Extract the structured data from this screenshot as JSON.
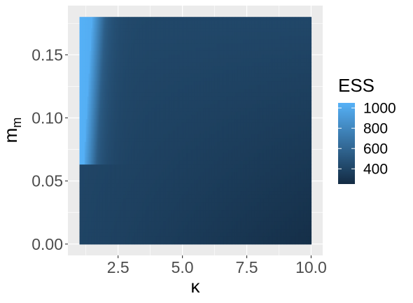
{
  "chart_data": {
    "type": "heatmap",
    "title": "",
    "xlabel": "κ",
    "ylabel_main": "m",
    "ylabel_sub": "m",
    "x_range": [
      1.0,
      10.0
    ],
    "y_range": [
      0.0,
      0.18
    ],
    "xlim": [
      0.55,
      10.45
    ],
    "ylim": [
      -0.009,
      0.189
    ],
    "x_ticks": [
      2.5,
      5.0,
      7.5,
      10.0
    ],
    "x_tick_labels": [
      "2.5",
      "5.0",
      "7.5",
      "10.0"
    ],
    "y_ticks": [
      0.0,
      0.05,
      0.1,
      0.15
    ],
    "y_tick_labels": [
      "0.00",
      "0.05",
      "0.10",
      "0.15"
    ],
    "grid": true,
    "fill_variable": "ESS",
    "color_scale": {
      "low_value": 250,
      "high_value": 1050,
      "low_color": "#132B43",
      "high_color": "#56B1F7"
    },
    "surface_estimate": {
      "description": "ESS high (~1050) in a thin wedge near κ=1 widening with m_m; decays to ~450 over most of the domain and ~260 at large κ, small m_m",
      "points": [
        {
          "kappa": 1.0,
          "m_m": 0.18,
          "ESS": 1050
        },
        {
          "kappa": 1.5,
          "m_m": 0.18,
          "ESS": 1000
        },
        {
          "kappa": 1.0,
          "m_m": 0.07,
          "ESS": 980
        },
        {
          "kappa": 2.0,
          "m_m": 0.18,
          "ESS": 520
        },
        {
          "kappa": 2.5,
          "m_m": 0.05,
          "ESS": 430
        },
        {
          "kappa": 5.0,
          "m_m": 0.1,
          "ESS": 380
        },
        {
          "kappa": 10.0,
          "m_m": 0.18,
          "ESS": 380
        },
        {
          "kappa": 10.0,
          "m_m": 0.0,
          "ESS": 260
        },
        {
          "kappa": 1.0,
          "m_m": 0.0,
          "ESS": 400
        }
      ]
    },
    "legend": {
      "title": "ESS",
      "position": "right",
      "breaks": [
        400,
        600,
        800,
        1000
      ],
      "labels": [
        "400",
        "600",
        "800",
        "1000"
      ]
    }
  }
}
